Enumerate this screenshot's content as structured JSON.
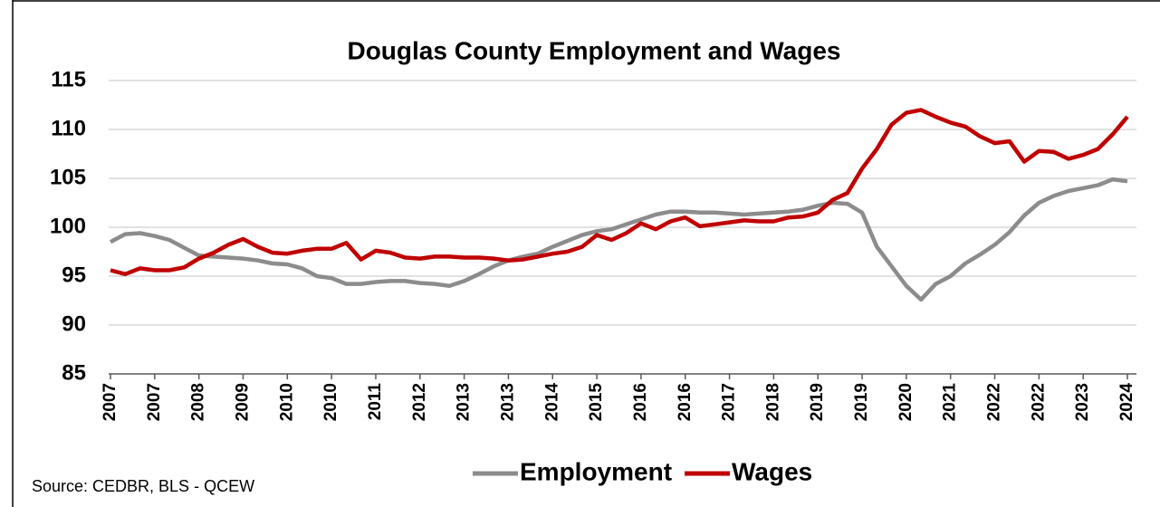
{
  "chart_data": {
    "type": "line",
    "title": "Douglas County Employment and Wages",
    "source": "Source: CEDBR, BLS - QCEW",
    "categories": [
      "2007",
      null,
      null,
      "2007",
      null,
      null,
      "2008",
      null,
      null,
      "2009",
      null,
      null,
      "2010",
      null,
      null,
      "2010",
      null,
      null,
      "2011",
      null,
      null,
      "2012",
      null,
      null,
      "2013",
      null,
      null,
      "2013",
      null,
      null,
      "2014",
      null,
      null,
      "2015",
      null,
      null,
      "2016",
      null,
      null,
      "2016",
      null,
      null,
      "2017",
      null,
      null,
      "2018",
      null,
      null,
      "2019",
      null,
      null,
      "2019",
      null,
      null,
      "2020",
      null,
      null,
      "2021",
      null,
      null,
      "2022",
      null,
      null,
      "2022",
      null,
      null,
      "2023",
      null,
      null,
      "2024"
    ],
    "series": [
      {
        "name": "Employment",
        "color": "#8c8c8c",
        "values": [
          98.5,
          99.3,
          99.4,
          99.1,
          98.7,
          97.9,
          97.1,
          97.0,
          96.9,
          96.8,
          96.6,
          96.3,
          96.2,
          95.8,
          95.0,
          94.8,
          94.2,
          94.2,
          94.4,
          94.5,
          94.5,
          94.3,
          94.2,
          94.0,
          94.5,
          95.2,
          96.0,
          96.6,
          97.0,
          97.3,
          98.0,
          98.6,
          99.2,
          99.6,
          99.8,
          100.3,
          100.8,
          101.3,
          101.6,
          101.6,
          101.5,
          101.5,
          101.4,
          101.3,
          101.4,
          101.5,
          101.6,
          101.8,
          102.2,
          102.5,
          102.4,
          101.5,
          98.0,
          96.0,
          94.0,
          92.6,
          94.2,
          95.0,
          96.3,
          97.2,
          98.2,
          99.5,
          101.2,
          102.5,
          103.2,
          103.7,
          104.0,
          104.3,
          104.9,
          104.7
        ]
      },
      {
        "name": "Wages",
        "color": "#c00000",
        "values": [
          95.6,
          95.2,
          95.8,
          95.6,
          95.6,
          95.9,
          96.8,
          97.4,
          98.2,
          98.8,
          98.0,
          97.4,
          97.3,
          97.6,
          97.8,
          97.8,
          98.4,
          96.7,
          97.6,
          97.4,
          96.9,
          96.8,
          97.0,
          97.0,
          96.9,
          96.9,
          96.8,
          96.6,
          96.7,
          97.0,
          97.3,
          97.5,
          98.0,
          99.2,
          98.7,
          99.4,
          100.4,
          99.8,
          100.6,
          101.0,
          100.1,
          100.3,
          100.5,
          100.7,
          100.6,
          100.6,
          101.0,
          101.1,
          101.5,
          102.8,
          103.5,
          106.0,
          108.0,
          110.5,
          111.7,
          112.0,
          111.3,
          110.7,
          110.3,
          109.3,
          108.6,
          108.8,
          106.7,
          107.8,
          107.7,
          107.0,
          107.4,
          108.0,
          109.5,
          111.3
        ]
      }
    ],
    "ylim": [
      85,
      115
    ],
    "yticks": [
      85,
      90,
      95,
      100,
      105,
      110,
      115
    ],
    "grid": true,
    "legend": "bottom"
  }
}
